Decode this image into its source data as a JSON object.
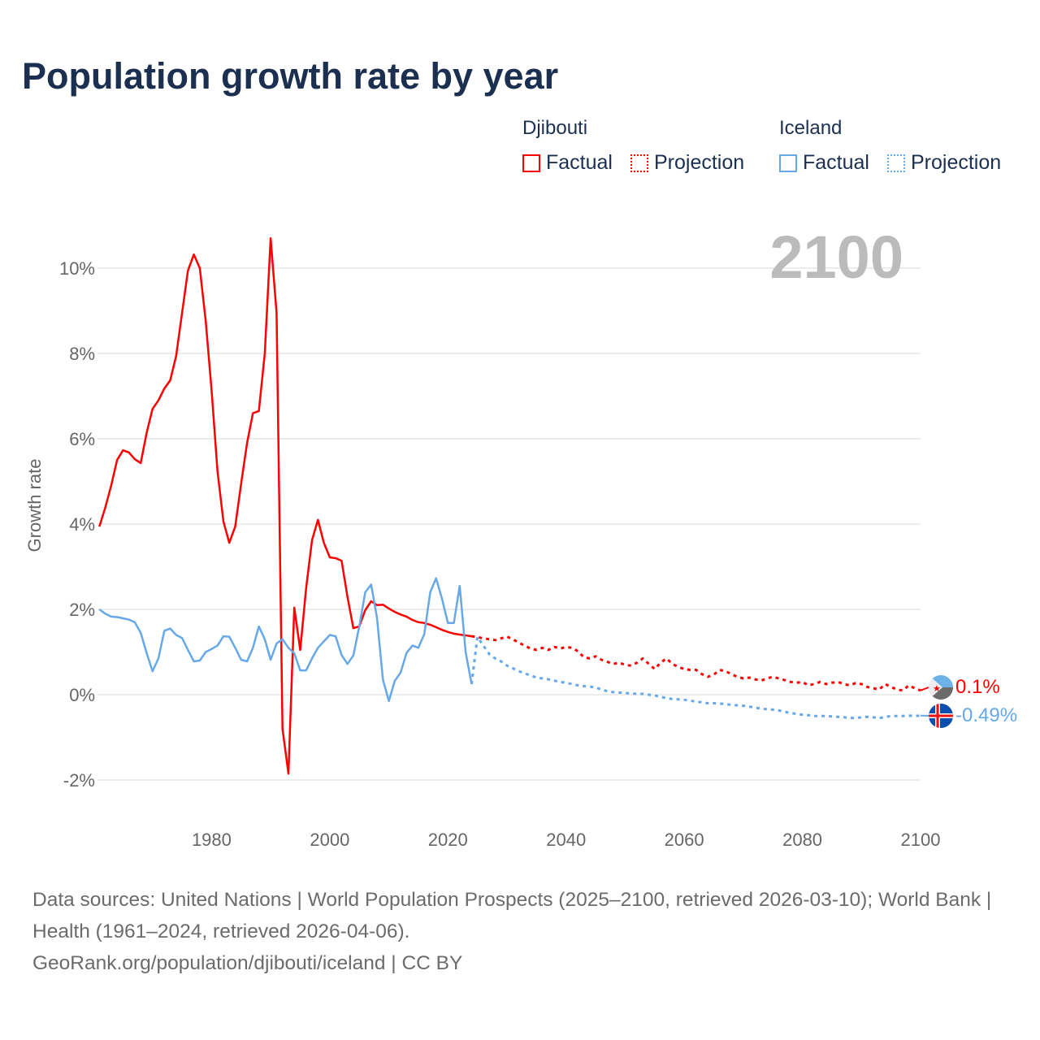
{
  "title": "Population growth rate by year",
  "legend": {
    "groups": [
      {
        "name": "Djibouti",
        "factual": "Factual",
        "projection": "Projection"
      },
      {
        "name": "Iceland",
        "factual": "Factual",
        "projection": "Projection"
      }
    ]
  },
  "colors": {
    "djibouti": "#ff0000",
    "iceland": "#66a8e8",
    "title": "#1b3050",
    "year": "#bbbbbb"
  },
  "year_label": "2100",
  "end_labels": {
    "djibouti": "0.1%",
    "iceland": "-0.49%"
  },
  "footer": {
    "line1": "Data sources: United Nations | World Population Prospects (2025–2100, retrieved 2026-03-10); World Bank | Health (1961–2024, retrieved 2026-04-06).",
    "line2": "GeoRank.org/population/djibouti/iceland | CC BY"
  },
  "chart_data": {
    "type": "line",
    "title": "Population growth rate by year",
    "xlabel": "",
    "ylabel": "Growth rate",
    "xlim": [
      1960,
      2100
    ],
    "ylim": [
      -3,
      11
    ],
    "x_ticks": [
      "1980",
      "2000",
      "2020",
      "2040",
      "2060",
      "2080",
      "2100"
    ],
    "y_ticks": [
      "-2%",
      "0%",
      "2%",
      "4%",
      "6%",
      "8%",
      "10%"
    ],
    "y_tick_values": [
      -2,
      0,
      2,
      4,
      6,
      8,
      10
    ],
    "x_tick_values": [
      1980,
      2000,
      2020,
      2040,
      2060,
      2080,
      2100
    ],
    "grid": true,
    "legend_position": "top-right",
    "series": [
      {
        "name": "Djibouti Factual",
        "start_year": 1961,
        "style": "solid",
        "color": "#ff0000",
        "values": [
          3.94,
          4.38,
          4.9,
          5.5,
          5.73,
          5.68,
          5.52,
          5.43,
          6.13,
          6.7,
          6.9,
          7.18,
          7.37,
          7.94,
          8.95,
          9.94,
          10.32,
          10.0,
          8.76,
          7.14,
          5.24,
          4.06,
          3.56,
          3.94,
          4.95,
          5.9,
          6.6,
          6.65,
          8.0,
          10.7,
          8.95,
          -0.8,
          -1.85,
          2.04,
          1.05,
          2.5,
          3.62,
          4.1,
          3.56,
          3.22,
          3.2,
          3.14,
          2.29,
          1.56,
          1.6,
          1.98,
          2.19,
          2.1,
          2.11,
          2.02,
          1.94,
          1.88,
          1.83,
          1.75,
          1.7,
          1.68,
          1.64,
          1.58,
          1.52,
          1.47,
          1.43,
          1.41,
          1.39,
          1.37
        ]
      },
      {
        "name": "Djibouti Projection",
        "start_year": 2025,
        "style": "dotted",
        "color": "#ff0000",
        "values": [
          1.35,
          1.32,
          1.3,
          1.28,
          1.32,
          1.36,
          1.3,
          1.22,
          1.15,
          1.08,
          1.05,
          1.1,
          1.05,
          1.12,
          1.08,
          1.12,
          1.1,
          1.02,
          0.88,
          0.85,
          0.9,
          0.82,
          0.77,
          0.72,
          0.75,
          0.7,
          0.68,
          0.75,
          0.85,
          0.72,
          0.6,
          0.75,
          0.85,
          0.72,
          0.65,
          0.6,
          0.58,
          0.58,
          0.48,
          0.42,
          0.47,
          0.58,
          0.55,
          0.48,
          0.42,
          0.38,
          0.4,
          0.36,
          0.33,
          0.38,
          0.42,
          0.38,
          0.34,
          0.3,
          0.28,
          0.3,
          0.22,
          0.25,
          0.3,
          0.25,
          0.28,
          0.3,
          0.25,
          0.22,
          0.27,
          0.25,
          0.18,
          0.15,
          0.12,
          0.25,
          0.18,
          0.12,
          0.1,
          0.22,
          0.15,
          0.1
        ]
      },
      {
        "name": "Iceland Factual",
        "start_year": 1961,
        "style": "solid",
        "color": "#66a8e8",
        "values": [
          2.0,
          1.9,
          1.83,
          1.82,
          1.79,
          1.76,
          1.7,
          1.45,
          0.98,
          0.55,
          0.85,
          1.5,
          1.55,
          1.4,
          1.33,
          1.05,
          0.78,
          0.8,
          1.0,
          1.07,
          1.15,
          1.37,
          1.36,
          1.1,
          0.82,
          0.78,
          1.1,
          1.6,
          1.3,
          0.82,
          1.2,
          1.3,
          1.1,
          0.97,
          0.57,
          0.57,
          0.85,
          1.1,
          1.25,
          1.4,
          1.37,
          0.93,
          0.72,
          0.92,
          1.6,
          2.4,
          2.58,
          1.8,
          0.35,
          -0.15,
          0.32,
          0.52,
          0.98,
          1.15,
          1.1,
          1.42,
          2.4,
          2.73,
          2.25,
          1.68,
          1.68,
          2.55,
          1.0,
          0.25
        ]
      },
      {
        "name": "Iceland Projection",
        "start_year": 2025,
        "style": "dotted",
        "color": "#66a8e8",
        "values": [
          1.35,
          1.15,
          0.95,
          0.85,
          0.78,
          0.68,
          0.62,
          0.55,
          0.5,
          0.45,
          0.4,
          0.38,
          0.36,
          0.33,
          0.3,
          0.28,
          0.25,
          0.22,
          0.2,
          0.19,
          0.17,
          0.12,
          0.08,
          0.06,
          0.05,
          0.04,
          0.03,
          0.02,
          0.02,
          0.0,
          -0.02,
          -0.05,
          -0.08,
          -0.1,
          -0.11,
          -0.12,
          -0.14,
          -0.16,
          -0.18,
          -0.2,
          -0.2,
          -0.21,
          -0.22,
          -0.24,
          -0.25,
          -0.26,
          -0.28,
          -0.3,
          -0.33,
          -0.34,
          -0.35,
          -0.37,
          -0.4,
          -0.43,
          -0.45,
          -0.47,
          -0.48,
          -0.5,
          -0.5,
          -0.5,
          -0.51,
          -0.52,
          -0.53,
          -0.54,
          -0.55,
          -0.53,
          -0.52,
          -0.53,
          -0.55,
          -0.52,
          -0.5,
          -0.5,
          -0.5,
          -0.49,
          -0.5,
          -0.49
        ]
      }
    ]
  }
}
